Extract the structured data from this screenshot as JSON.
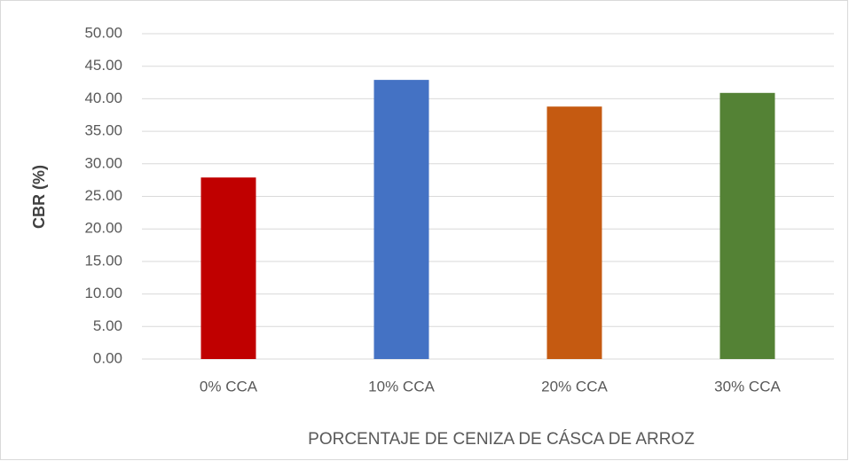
{
  "chart_data": {
    "type": "bar",
    "x_label": "PORCENTAJE DE CENIZA DE CÁSCA DE ARROZ",
    "y_label": "CBR (%)",
    "categories": [
      "0% CCA",
      "10% CCA",
      "20% CCA",
      "30% CCA"
    ],
    "values": [
      27.9,
      42.9,
      38.8,
      40.9
    ],
    "colors": [
      "#c00000",
      "#4472c4",
      "#c55a11",
      "#548235"
    ],
    "ylim": [
      0,
      50
    ],
    "yticks": [
      {
        "value": 0,
        "label": "0.00"
      },
      {
        "value": 5,
        "label": "5.00"
      },
      {
        "value": 10,
        "label": "10.00"
      },
      {
        "value": 15,
        "label": "15.00"
      },
      {
        "value": 20,
        "label": "20.00"
      },
      {
        "value": 25,
        "label": "25.00"
      },
      {
        "value": 30,
        "label": "30.00"
      },
      {
        "value": 35,
        "label": "35.00"
      },
      {
        "value": 40,
        "label": "40.00"
      },
      {
        "value": 45,
        "label": "45.00"
      },
      {
        "value": 50,
        "label": "50.00"
      }
    ],
    "grid": true
  }
}
